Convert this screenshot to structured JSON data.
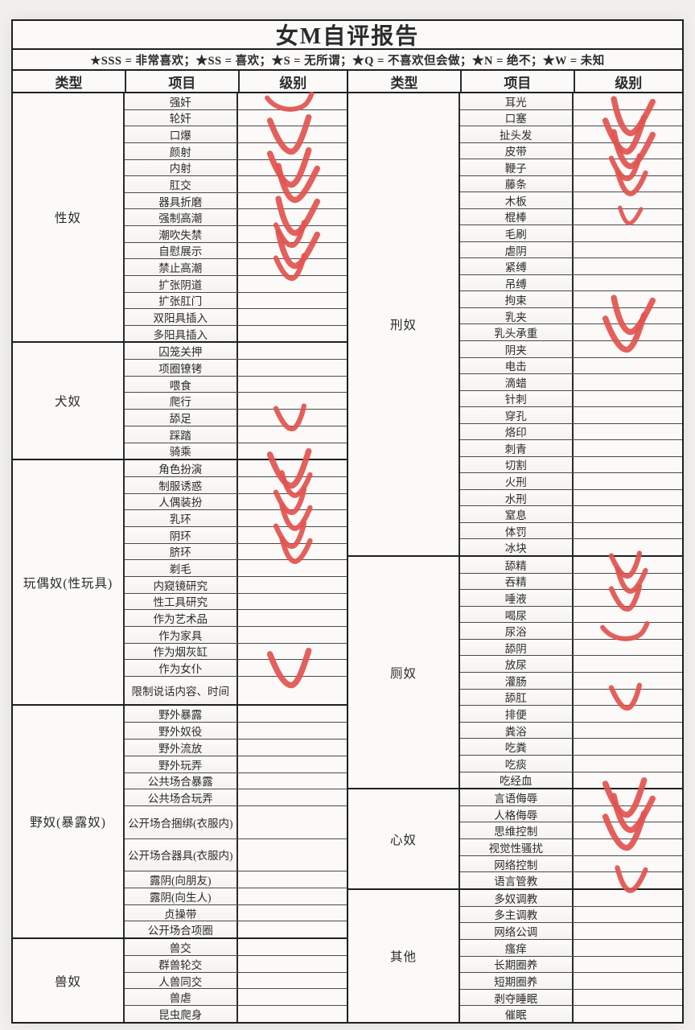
{
  "title": "女M自评报告",
  "legend": "★SSS = 非常喜欢；★SS = 喜欢；★S = 无所谓；★Q = 不喜欢但会做；★N = 绝不；★W = 未知",
  "columns": {
    "type": "类型",
    "item": "项目",
    "level": "级别"
  },
  "check_color": "#e25450",
  "left_groups": [
    {
      "type": "性奴",
      "items": [
        {
          "label": "强奸",
          "check": "swoosh"
        },
        {
          "label": "轮奸"
        },
        {
          "label": "口爆",
          "check": "lg"
        },
        {
          "label": "颜射"
        },
        {
          "label": "内射",
          "check": "lg"
        },
        {
          "label": "肛交",
          "check": "lg"
        },
        {
          "label": "器具折磨"
        },
        {
          "label": "强制高潮",
          "check": "lg"
        },
        {
          "label": "潮吹失禁",
          "check": "md"
        },
        {
          "label": "自慰展示",
          "check": "lg"
        },
        {
          "label": "禁止高潮",
          "check": "md"
        },
        {
          "label": "扩张阴道"
        },
        {
          "label": "扩张肛门"
        },
        {
          "label": "双阳具插入"
        },
        {
          "label": "多阳具插入"
        }
      ]
    },
    {
      "type": "犬奴",
      "items": [
        {
          "label": "囚笼关押"
        },
        {
          "label": "项圈镣铐"
        },
        {
          "label": "喂食"
        },
        {
          "label": "爬行"
        },
        {
          "label": "舔足",
          "check": "md"
        },
        {
          "label": "踩踏"
        },
        {
          "label": "骑乘"
        }
      ]
    },
    {
      "type": "玩偶奴(性玩具)",
      "items": [
        {
          "label": "角色扮演",
          "check": "lg"
        },
        {
          "label": "制服诱惑",
          "check": "md"
        },
        {
          "label": "人偶装扮",
          "check": "md"
        },
        {
          "label": "乳环",
          "check": "md"
        },
        {
          "label": "阴环",
          "check": "md"
        },
        {
          "label": "脐环",
          "check": "md"
        },
        {
          "label": "剃毛"
        },
        {
          "label": "内窥镜研究"
        },
        {
          "label": "性工具研究"
        },
        {
          "label": "作为艺术品"
        },
        {
          "label": "作为家具"
        },
        {
          "label": "作为烟灰缸"
        },
        {
          "label": "作为女仆",
          "check": "lg"
        },
        {
          "label": "限制说话内容、时间",
          "h": 1.75
        }
      ]
    },
    {
      "type": "野奴(暴露奴)",
      "items": [
        {
          "label": "野外暴露"
        },
        {
          "label": "野外奴役"
        },
        {
          "label": "野外流放"
        },
        {
          "label": "野外玩弄"
        },
        {
          "label": "公共场合暴露"
        },
        {
          "label": "公共场合玩弄"
        },
        {
          "label": "公开场合捆绑(衣服内)",
          "h": 2
        },
        {
          "label": "公开场合器具(衣服内)",
          "h": 2
        },
        {
          "label": "露阴(向朋友)"
        },
        {
          "label": "露阴(向生人)"
        },
        {
          "label": "贞操带"
        },
        {
          "label": "公开场合项圈"
        }
      ]
    },
    {
      "type": "兽奴",
      "items": [
        {
          "label": "兽交"
        },
        {
          "label": "群兽轮交"
        },
        {
          "label": "人兽同交"
        },
        {
          "label": "兽虐"
        },
        {
          "label": "昆虫爬身"
        }
      ]
    }
  ],
  "right_groups": [
    {
      "type": "刑奴",
      "items": [
        {
          "label": "耳光"
        },
        {
          "label": "口塞",
          "check": "lg"
        },
        {
          "label": "扯头发",
          "check": "lg"
        },
        {
          "label": "皮带",
          "check": "lg"
        },
        {
          "label": "鞭子",
          "check": "md"
        },
        {
          "label": "藤条",
          "check": "md"
        },
        {
          "label": "木板"
        },
        {
          "label": "棍棒",
          "check": "sm"
        },
        {
          "label": "毛刷"
        },
        {
          "label": "虐阴"
        },
        {
          "label": "紧缚"
        },
        {
          "label": "吊缚"
        },
        {
          "label": "拘束"
        },
        {
          "label": "乳夹",
          "check": "lg"
        },
        {
          "label": "乳头承重",
          "check": "lg"
        },
        {
          "label": "阴夹"
        },
        {
          "label": "电击"
        },
        {
          "label": "滴蜡"
        },
        {
          "label": "针刺"
        },
        {
          "label": "穿孔"
        },
        {
          "label": "烙印"
        },
        {
          "label": "刺青"
        },
        {
          "label": "切割"
        },
        {
          "label": "火刑"
        },
        {
          "label": "水刑"
        },
        {
          "label": "窒息"
        },
        {
          "label": "体罚"
        },
        {
          "label": "冰块"
        }
      ]
    },
    {
      "type": "厕奴",
      "items": [
        {
          "label": "舔精",
          "check": "md"
        },
        {
          "label": "吞精",
          "check": "md"
        },
        {
          "label": "唾液",
          "check": "md"
        },
        {
          "label": "喝尿"
        },
        {
          "label": "尿浴",
          "check": "swoosh"
        },
        {
          "label": "舔阴"
        },
        {
          "label": "放尿"
        },
        {
          "label": "灌肠"
        },
        {
          "label": "舔肛",
          "check": "md"
        },
        {
          "label": "排便"
        },
        {
          "label": "粪浴"
        },
        {
          "label": "吃粪"
        },
        {
          "label": "吃痰"
        },
        {
          "label": "吃经血"
        }
      ]
    },
    {
      "type": "心奴",
      "items": [
        {
          "label": "言语侮辱",
          "check": "lg"
        },
        {
          "label": "人格侮辱",
          "check": "lg"
        },
        {
          "label": "思维控制",
          "check": "lg"
        },
        {
          "label": "视觉性骚扰"
        },
        {
          "label": "网络控制"
        },
        {
          "label": "语言管教",
          "check": "md"
        }
      ]
    },
    {
      "type": "其他",
      "items": [
        {
          "label": "多奴调教"
        },
        {
          "label": "多主调教"
        },
        {
          "label": "网络公调"
        },
        {
          "label": "瘙痒"
        },
        {
          "label": "长期圈养"
        },
        {
          "label": "短期圈养"
        },
        {
          "label": "剥夺睡眠"
        },
        {
          "label": "催眠"
        }
      ]
    }
  ]
}
